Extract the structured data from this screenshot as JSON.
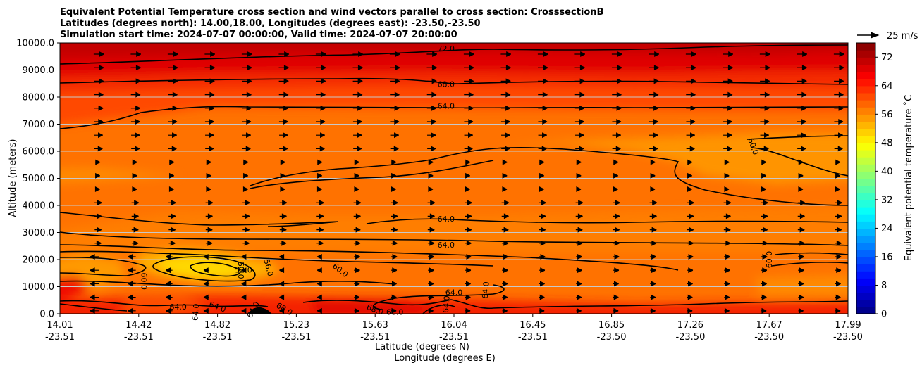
{
  "chart_data": {
    "type": "heatmap",
    "title_lines": [
      "Equivalent Potential Temperature cross section and wind vectors parallel to cross section: CrosssectionB",
      "Latitudes (degrees north): 14.00,18.00, Longitudes (degrees east): -23.50,-23.50",
      "Simulation start time: 2024-07-07 00:00:00, Valid time: 2024-07-07 20:00:00"
    ],
    "ylabel": "Altitude (meters)",
    "xlabel_lat": "Latitude (degrees N)",
    "xlabel_lon": "Longitude (degrees E)",
    "ylim": [
      0,
      10000
    ],
    "y_ticks": [
      {
        "value": 0,
        "label": "0.0"
      },
      {
        "value": 1000,
        "label": "1000.0"
      },
      {
        "value": 2000,
        "label": "2000.0"
      },
      {
        "value": 3000,
        "label": "3000.0"
      },
      {
        "value": 4000,
        "label": "4000.0"
      },
      {
        "value": 5000,
        "label": "5000.0"
      },
      {
        "value": 6000,
        "label": "6000.0"
      },
      {
        "value": 7000,
        "label": "7000.0"
      },
      {
        "value": 8000,
        "label": "8000.0"
      },
      {
        "value": 9000,
        "label": "9000.0"
      },
      {
        "value": 10000,
        "label": "10000.0"
      }
    ],
    "x_ticks": [
      {
        "lat": "14.01",
        "lon": "-23.51",
        "frac": 0.0
      },
      {
        "lat": "14.42",
        "lon": "-23.51",
        "frac": 0.1
      },
      {
        "lat": "14.82",
        "lon": "-23.51",
        "frac": 0.2
      },
      {
        "lat": "15.23",
        "lon": "-23.51",
        "frac": 0.3
      },
      {
        "lat": "15.63",
        "lon": "-23.51",
        "frac": 0.4
      },
      {
        "lat": "16.04",
        "lon": "-23.51",
        "frac": 0.5
      },
      {
        "lat": "16.45",
        "lon": "-23.51",
        "frac": 0.6
      },
      {
        "lat": "16.85",
        "lon": "-23.50",
        "frac": 0.7
      },
      {
        "lat": "17.26",
        "lon": "-23.50",
        "frac": 0.8
      },
      {
        "lat": "17.67",
        "lon": "-23.50",
        "frac": 0.9
      },
      {
        "lat": "17.99",
        "lon": "-23.50",
        "frac": 1.0
      }
    ],
    "colorbar": {
      "label": "Equivalent potential temperature ˚C",
      "min": 0,
      "max": 76,
      "ticks": [
        "0",
        "8",
        "16",
        "24",
        "32",
        "40",
        "48",
        "56",
        "64",
        "72"
      ]
    },
    "quiver_key": {
      "label": "25 m/s"
    },
    "contour_labels": [
      {
        "text": "72.0",
        "x": 0.49,
        "y": 9790,
        "angle": 0
      },
      {
        "text": "68.0",
        "x": 0.49,
        "y": 8480,
        "angle": 0
      },
      {
        "text": "64.0",
        "x": 0.49,
        "y": 7680,
        "angle": 0
      },
      {
        "text": "64.0",
        "x": 0.49,
        "y": 3510,
        "angle": 0
      },
      {
        "text": "64.0",
        "x": 0.49,
        "y": 2540,
        "angle": 0
      },
      {
        "text": "64.0",
        "x": 0.5,
        "y": 790,
        "angle": 0
      },
      {
        "text": "64.0",
        "x": 0.54,
        "y": 870,
        "angle": -85
      },
      {
        "text": "64.0",
        "x": 0.15,
        "y": 260,
        "angle": 0
      },
      {
        "text": "64.0",
        "x": 0.2,
        "y": 260,
        "angle": 20
      },
      {
        "text": "60.0",
        "x": 0.88,
        "y": 6180,
        "angle": 70
      },
      {
        "text": "60.0",
        "x": 0.9,
        "y": 2000,
        "angle": -90
      },
      {
        "text": "60.0",
        "x": 0.356,
        "y": 1610,
        "angle": 40
      },
      {
        "text": "60.0",
        "x": 0.107,
        "y": 1200,
        "angle": 90
      },
      {
        "text": "56.0",
        "x": 0.265,
        "y": 1700,
        "angle": 75
      },
      {
        "text": "52.0",
        "x": 0.23,
        "y": 1600,
        "angle": 90
      },
      {
        "text": "52.0",
        "x": 0.233,
        "y": 1620,
        "angle": 0
      },
      {
        "text": "68.0",
        "x": 0.285,
        "y": 180,
        "angle": 30
      },
      {
        "text": "68.0",
        "x": 0.4,
        "y": 160,
        "angle": 20
      },
      {
        "text": "68.0",
        "x": 0.425,
        "y": 70,
        "angle": 0
      },
      {
        "text": "64.0",
        "x": 0.245,
        "y": 150,
        "angle": -60
      },
      {
        "text": "64.0",
        "x": 0.49,
        "y": 350,
        "angle": -85
      },
      {
        "text": "64.0",
        "x": 0.172,
        "y": 60,
        "angle": -85
      }
    ]
  }
}
